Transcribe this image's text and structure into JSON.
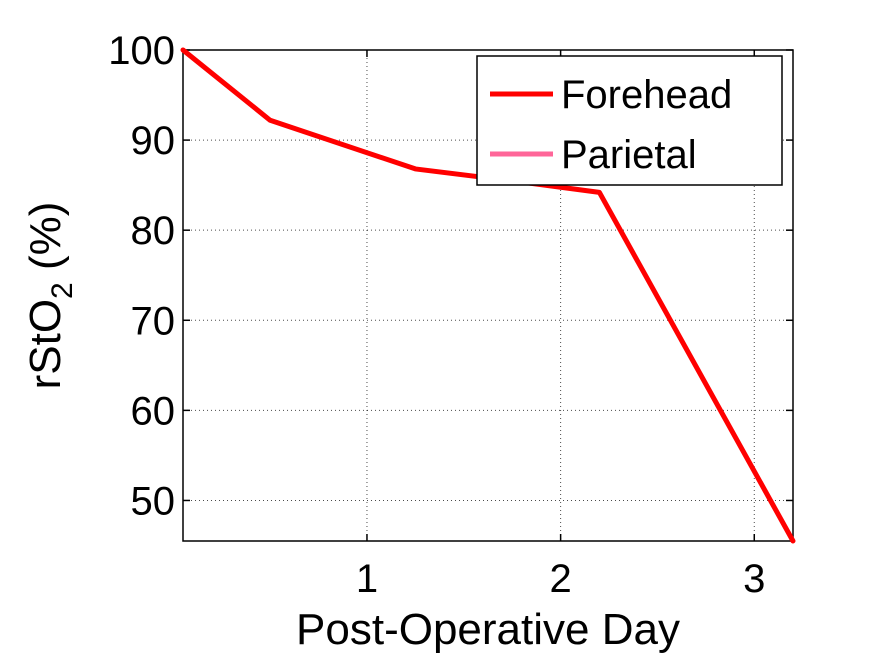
{
  "chart_data": {
    "type": "line",
    "xlabel": "Post-Operative Day",
    "ylabel_main": "rStO",
    "ylabel_sub": "2",
    "ylabel_suffix": " (%)",
    "xlim": [
      0.05,
      3.2
    ],
    "ylim": [
      45.5,
      100
    ],
    "xticks": [
      1,
      2,
      3
    ],
    "yticks": [
      50,
      60,
      70,
      80,
      90,
      100
    ],
    "grid": true,
    "legend_position": "top-right",
    "series": [
      {
        "name": "Forehead",
        "color": "#ff0000",
        "x": [
          0.05,
          0.5,
          1.25,
          1.85,
          2.2,
          3.2
        ],
        "y": [
          100,
          92.2,
          86.8,
          85.2,
          84.2,
          45.5
        ]
      },
      {
        "name": "Parietal",
        "color": "#ff6699",
        "x": [],
        "y": []
      }
    ]
  }
}
